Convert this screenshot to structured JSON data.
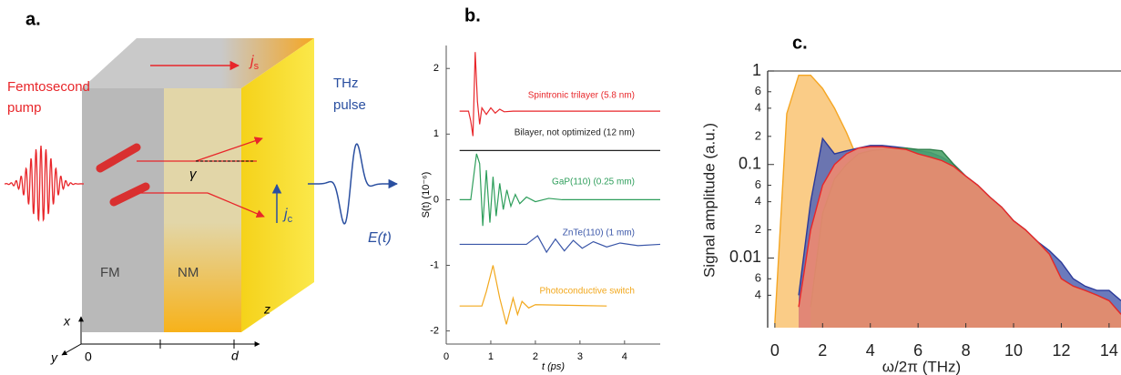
{
  "diagram": {
    "label": "a.",
    "pump": [
      "Femtosecond",
      "pump"
    ],
    "thz": [
      "THz",
      "pulse"
    ],
    "js": {
      "symbol": "j",
      "subscript": "s"
    },
    "jc": {
      "symbol": "j",
      "subscript": "c"
    },
    "gamma": "γ",
    "field": "E(t)",
    "fm": "FM",
    "nm": "NM",
    "axis_x": "x",
    "axis_y": "y",
    "axis_z": "z",
    "origin": "0",
    "thickness": "d"
  },
  "chart_data": [
    {
      "type": "line",
      "label": "b.",
      "xlabel": "t (ps)",
      "ylabel": "S(t) (10⁻⁶)",
      "xlim": [
        0,
        4.8
      ],
      "ylim": [
        -2.2,
        2.35
      ],
      "xticks": [
        0,
        1,
        2,
        3,
        4
      ],
      "yticks": [
        -2,
        -1,
        0,
        1,
        2
      ],
      "series": [
        {
          "name": "Spintronic trilayer (5.8 nm)",
          "color": "#e8262a",
          "x": [
            0.3,
            0.5,
            0.55,
            0.6,
            0.65,
            0.7,
            0.75,
            0.8,
            0.9,
            1.0,
            1.1,
            1.2,
            1.3,
            1.5,
            4.8
          ],
          "values": [
            1.35,
            1.35,
            1.2,
            0.97,
            2.25,
            1.5,
            1.15,
            1.4,
            1.3,
            1.4,
            1.32,
            1.38,
            1.34,
            1.35,
            1.35
          ]
        },
        {
          "name": "Bilayer, not optimized (12 nm)",
          "color": "#222222",
          "x": [
            0.3,
            4.8
          ],
          "values": [
            0.75,
            0.75
          ]
        },
        {
          "name": "GaP(110) (0.25 mm)",
          "color": "#2e9e5b",
          "x": [
            0.3,
            0.55,
            0.68,
            0.75,
            0.82,
            0.9,
            0.98,
            1.05,
            1.12,
            1.2,
            1.28,
            1.36,
            1.45,
            1.55,
            1.65,
            1.8,
            2.0,
            2.3,
            2.6,
            4.8
          ],
          "values": [
            0,
            0,
            0.7,
            0.55,
            -0.4,
            0.45,
            -0.35,
            0.35,
            -0.25,
            0.25,
            -0.15,
            0.15,
            -0.1,
            0.08,
            -0.06,
            0.04,
            -0.03,
            0.02,
            0,
            0
          ]
        },
        {
          "name": "ZnTe(110) (1 mm)",
          "color": "#3a56a8",
          "x": [
            0.3,
            1.8,
            2.05,
            2.25,
            2.45,
            2.65,
            2.85,
            3.05,
            3.3,
            3.6,
            3.9,
            4.3,
            4.8
          ],
          "values": [
            -0.68,
            -0.68,
            -0.55,
            -0.8,
            -0.6,
            -0.78,
            -0.62,
            -0.74,
            -0.64,
            -0.72,
            -0.66,
            -0.7,
            -0.68
          ]
        },
        {
          "name": "Photoconductive switch",
          "color": "#f2a81d",
          "x": [
            0.3,
            0.8,
            0.9,
            1.05,
            1.2,
            1.35,
            1.5,
            1.6,
            1.7,
            1.85,
            2.0,
            3.6
          ],
          "values": [
            -1.62,
            -1.62,
            -1.4,
            -1.0,
            -1.5,
            -1.9,
            -1.5,
            -1.75,
            -1.55,
            -1.65,
            -1.6,
            -1.62
          ]
        }
      ]
    },
    {
      "type": "area",
      "label": "c.",
      "xlabel": "ω/2π (THz)",
      "ylabel": "Signal amplitude (a.u.)",
      "log_y": true,
      "xlim": [
        -0.3,
        14.5
      ],
      "ylim": [
        0.0018,
        1
      ],
      "xticks": [
        0,
        2,
        4,
        6,
        8,
        10,
        12,
        14
      ],
      "yticks": [
        1,
        {
          "value": 0.6,
          "label": "6"
        },
        {
          "value": 0.4,
          "label": "4"
        },
        {
          "value": 0.2,
          "label": "2"
        },
        0.1,
        {
          "value": 0.06,
          "label": "6"
        },
        {
          "value": 0.04,
          "label": "4"
        },
        {
          "value": 0.02,
          "label": "2"
        },
        0.01,
        {
          "value": 0.006,
          "label": "6"
        },
        {
          "value": 0.004,
          "label": "4"
        }
      ],
      "x": [
        0,
        0.5,
        1,
        1.5,
        2,
        2.5,
        3,
        3.5,
        4,
        4.5,
        5,
        5.5,
        6,
        6.5,
        7,
        7.5,
        8,
        8.5,
        9,
        9.5,
        10,
        10.5,
        11,
        11.5,
        12,
        12.5,
        13,
        13.5,
        14,
        14.5
      ],
      "series": [
        {
          "color": "#f9c77a",
          "stroke": "#f5a623",
          "values": [
            0.002,
            0.35,
            0.9,
            0.9,
            0.65,
            0.4,
            0.22,
            0.11,
            0.05,
            0.025,
            0.01,
            0.003,
            null,
            null,
            null,
            null,
            null,
            null,
            null,
            null,
            null,
            null,
            null,
            null,
            null,
            null,
            null,
            null,
            null,
            null
          ]
        },
        {
          "color": "#5b6bb5",
          "stroke": "#2b3a9a",
          "values": [
            null,
            null,
            0.004,
            0.04,
            0.19,
            0.13,
            0.14,
            0.15,
            0.16,
            0.16,
            0.155,
            0.15,
            0.14,
            0.135,
            0.12,
            0.1,
            0.075,
            0.06,
            0.045,
            0.035,
            0.025,
            0.02,
            0.015,
            0.012,
            0.009,
            0.006,
            0.005,
            0.0045,
            0.0045,
            0.0035
          ]
        },
        {
          "color": "#4aa36a",
          "stroke": "#2e7d4a",
          "values": [
            null,
            null,
            null,
            0.003,
            0.03,
            0.07,
            0.1,
            0.13,
            0.14,
            0.145,
            0.15,
            0.15,
            0.145,
            0.145,
            0.14,
            0.1,
            0.075,
            0.06,
            0.045,
            0.035,
            0.025,
            0.02,
            0.015,
            0.011,
            0.006,
            0.005,
            0.0045,
            0.004,
            0.0035,
            0.0025
          ]
        },
        {
          "color": "#f08a70",
          "stroke": "#e8262a",
          "values": [
            null,
            null,
            0.003,
            0.02,
            0.06,
            0.1,
            0.13,
            0.15,
            0.155,
            0.155,
            0.15,
            0.145,
            0.13,
            0.12,
            0.11,
            0.095,
            0.075,
            0.06,
            0.045,
            0.035,
            0.025,
            0.02,
            0.015,
            0.011,
            0.006,
            0.005,
            0.0045,
            0.004,
            0.0035,
            0.0025
          ]
        }
      ]
    }
  ]
}
